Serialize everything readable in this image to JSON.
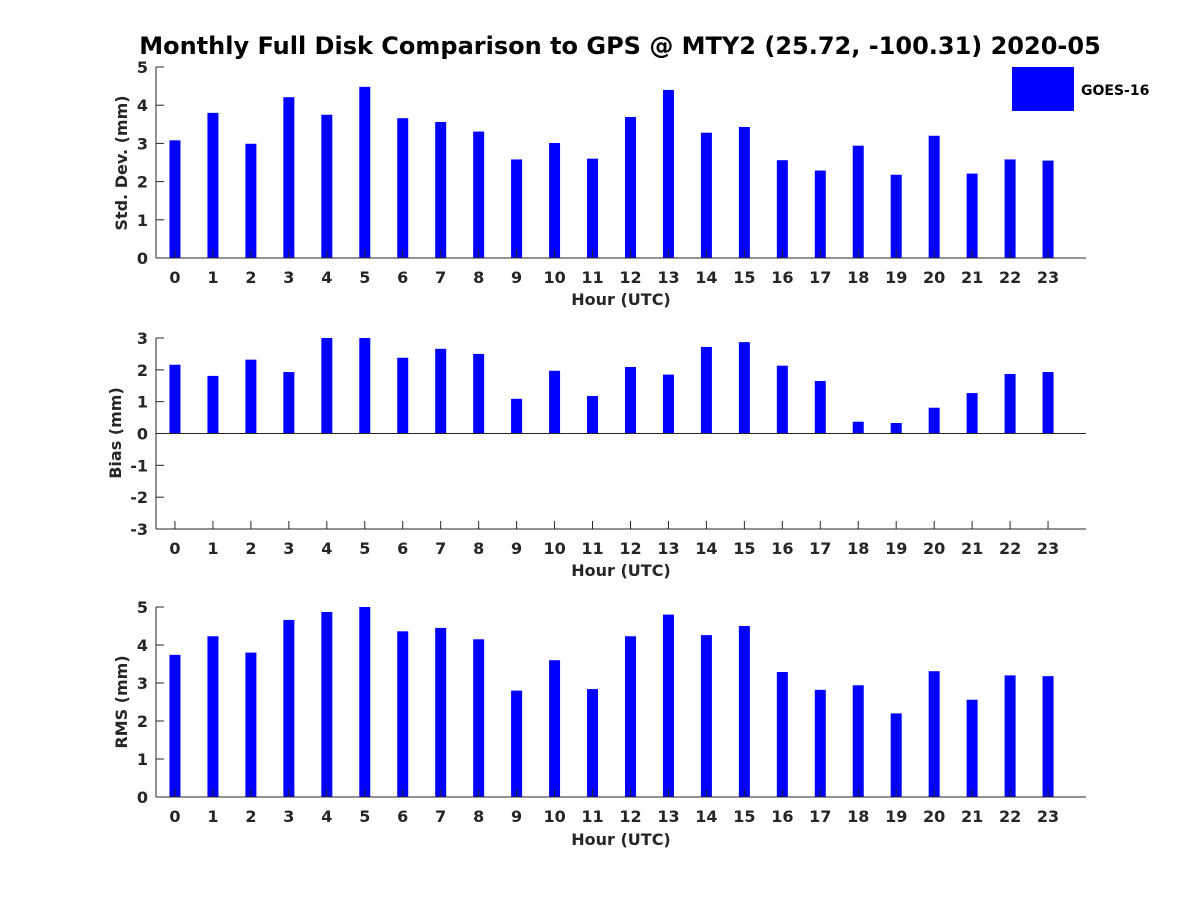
{
  "title": "Monthly Full Disk Comparison to GPS @ MTY2 (25.72, -100.31) 2020-05",
  "legend": {
    "label": "GOES-16",
    "color": "#0000ff"
  },
  "chart_data": [
    {
      "type": "bar",
      "ylabel": "Std. Dev. (mm)",
      "xlabel": "Hour (UTC)",
      "ylim": [
        0,
        5
      ],
      "yticks": [
        0,
        1,
        2,
        3,
        4,
        5
      ],
      "categories": [
        "0",
        "1",
        "2",
        "3",
        "4",
        "5",
        "6",
        "7",
        "8",
        "9",
        "10",
        "11",
        "12",
        "13",
        "14",
        "15",
        "16",
        "17",
        "18",
        "19",
        "20",
        "21",
        "22",
        "23"
      ],
      "series": [
        {
          "name": "GOES-16",
          "color": "#0000ff",
          "values": [
            3.08,
            3.8,
            2.99,
            4.21,
            3.75,
            4.48,
            3.66,
            3.56,
            3.31,
            2.58,
            3.01,
            2.6,
            3.69,
            4.4,
            3.28,
            3.43,
            2.56,
            2.29,
            2.94,
            2.18,
            3.2,
            2.21,
            2.58,
            2.55
          ]
        }
      ],
      "grid": false,
      "legend": "top-right"
    },
    {
      "type": "bar",
      "ylabel": "Bias (mm)",
      "xlabel": "Hour (UTC)",
      "ylim": [
        -3,
        3
      ],
      "yticks": [
        -3,
        -2,
        -1,
        0,
        1,
        2,
        3
      ],
      "categories": [
        "0",
        "1",
        "2",
        "3",
        "4",
        "5",
        "6",
        "7",
        "8",
        "9",
        "10",
        "11",
        "12",
        "13",
        "14",
        "15",
        "16",
        "17",
        "18",
        "19",
        "20",
        "21",
        "22",
        "23"
      ],
      "series": [
        {
          "name": "GOES-16",
          "color": "#0000ff",
          "values": [
            2.16,
            1.81,
            2.32,
            1.93,
            3.0,
            3.0,
            2.38,
            2.66,
            2.5,
            1.09,
            1.97,
            1.18,
            2.09,
            1.85,
            2.72,
            2.87,
            2.13,
            1.65,
            0.37,
            0.33,
            0.81,
            1.27,
            1.87,
            1.93
          ]
        }
      ],
      "grid": false
    },
    {
      "type": "bar",
      "ylabel": "RMS (mm)",
      "xlabel": "Hour (UTC)",
      "ylim": [
        0,
        5
      ],
      "yticks": [
        0,
        1,
        2,
        3,
        4,
        5
      ],
      "categories": [
        "0",
        "1",
        "2",
        "3",
        "4",
        "5",
        "6",
        "7",
        "8",
        "9",
        "10",
        "11",
        "12",
        "13",
        "14",
        "15",
        "16",
        "17",
        "18",
        "19",
        "20",
        "21",
        "22",
        "23"
      ],
      "series": [
        {
          "name": "GOES-16",
          "color": "#0000ff",
          "values": [
            3.74,
            4.23,
            3.8,
            4.66,
            4.87,
            5.0,
            4.36,
            4.45,
            4.15,
            2.8,
            3.6,
            2.84,
            4.23,
            4.8,
            4.26,
            4.5,
            3.29,
            2.82,
            2.94,
            2.2,
            3.31,
            2.56,
            3.2,
            3.18
          ]
        }
      ],
      "grid": false
    }
  ]
}
